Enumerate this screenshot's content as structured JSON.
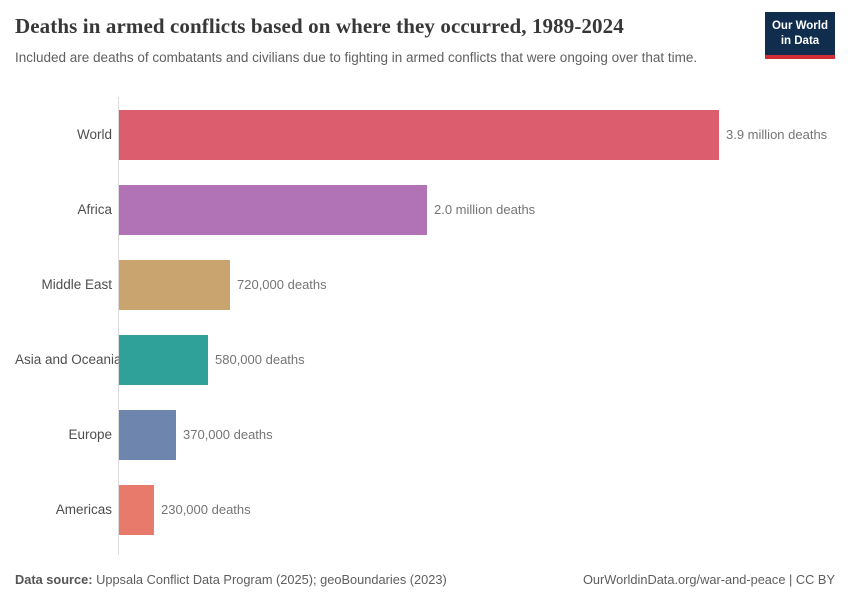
{
  "header": {
    "title": "Deaths in armed conflicts based on where they occurred, 1989-2024",
    "subtitle": "Included are deaths of combatants and civilians due to fighting in armed conflicts that were ongoing over that time.",
    "logo": {
      "line1": "Our World",
      "line2": "in Data",
      "bg_color": "#102d4e",
      "accent_color": "#d12d35"
    }
  },
  "chart_data": {
    "type": "bar",
    "orientation": "horizontal",
    "title": "Deaths in armed conflicts based on where they occurred, 1989-2024",
    "categories": [
      "World",
      "Africa",
      "Middle East",
      "Asia and Oceania",
      "Europe",
      "Americas"
    ],
    "values": [
      3900000,
      2000000,
      720000,
      580000,
      370000,
      230000
    ],
    "value_labels": [
      "3.9 million deaths",
      "2.0 million deaths",
      "720,000 deaths",
      "580,000 deaths",
      "370,000 deaths",
      "230,000 deaths"
    ],
    "bar_colors": [
      "#dc5e6e",
      "#b173b5",
      "#c9a46f",
      "#2fa199",
      "#6e86ae",
      "#e87a6b"
    ],
    "xlim": [
      0,
      3900000
    ],
    "xlabel": "",
    "ylabel": "",
    "grid": false,
    "legend": false,
    "axis_color": "#dcdcdc"
  },
  "footer": {
    "source_label": "Data source:",
    "source_text": " Uppsala Conflict Data Program (2025); geoBoundaries (2023)",
    "right_text": "OurWorldinData.org/war-and-peace | CC BY"
  }
}
